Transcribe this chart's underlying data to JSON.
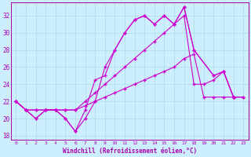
{
  "xlabel": "Windchill (Refroidissement éolien,°C)",
  "bg_color": "#cceeff",
  "line_color": "#cc00cc",
  "grid_color": "#aadddd",
  "text_color": "#aa00aa",
  "xlim": [
    -0.5,
    23.5
  ],
  "ylim": [
    17.5,
    33.5
  ],
  "yticks": [
    18,
    20,
    22,
    24,
    26,
    28,
    30,
    32
  ],
  "xticks": [
    0,
    1,
    2,
    3,
    4,
    5,
    6,
    7,
    8,
    9,
    10,
    11,
    12,
    13,
    14,
    15,
    16,
    17,
    18,
    19,
    20,
    21,
    22,
    23
  ],
  "s1_x": [
    0,
    1,
    2,
    3,
    4,
    5,
    6,
    7,
    8,
    9,
    10,
    11,
    12,
    13,
    14,
    15,
    16,
    17,
    18,
    20,
    21,
    22
  ],
  "s1_y": [
    22,
    21,
    20,
    21,
    21,
    20,
    18.5,
    20,
    22,
    26,
    28,
    30,
    31.5,
    32,
    31,
    32,
    31,
    33,
    28,
    25,
    25.5,
    22.5
  ],
  "s2_x": [
    0,
    1,
    2,
    3,
    4,
    5,
    6,
    7,
    8,
    9,
    10,
    11,
    12,
    13,
    14,
    15,
    16,
    17,
    18,
    20,
    21,
    22
  ],
  "s2_y": [
    22,
    21,
    20,
    21,
    21,
    20,
    18.5,
    21,
    24.5,
    25,
    28,
    30,
    31.5,
    32,
    31,
    32,
    31,
    33,
    28,
    25,
    25.5,
    22.5
  ],
  "s3_x": [
    0,
    1,
    2,
    3,
    4,
    5,
    6,
    7,
    8,
    9,
    10,
    11,
    12,
    13,
    14,
    15,
    16,
    17,
    18,
    19,
    20,
    21,
    22,
    23
  ],
  "s3_y": [
    22,
    21,
    21,
    21,
    21,
    21,
    21,
    22,
    23,
    24,
    25,
    26,
    27,
    28,
    29,
    30,
    31,
    32,
    24,
    24,
    24.5,
    25.5,
    22.5,
    22.5
  ],
  "s4_x": [
    0,
    1,
    2,
    3,
    4,
    5,
    6,
    7,
    8,
    9,
    10,
    11,
    12,
    13,
    14,
    15,
    16,
    17,
    18,
    19,
    20,
    21,
    22,
    23
  ],
  "s4_y": [
    22,
    21,
    21,
    21,
    21,
    21,
    21,
    21.5,
    22,
    22.5,
    23,
    23.5,
    24,
    24.5,
    25,
    25.5,
    26,
    27,
    27.5,
    22.5,
    22.5,
    22.5,
    22.5,
    22.5
  ]
}
